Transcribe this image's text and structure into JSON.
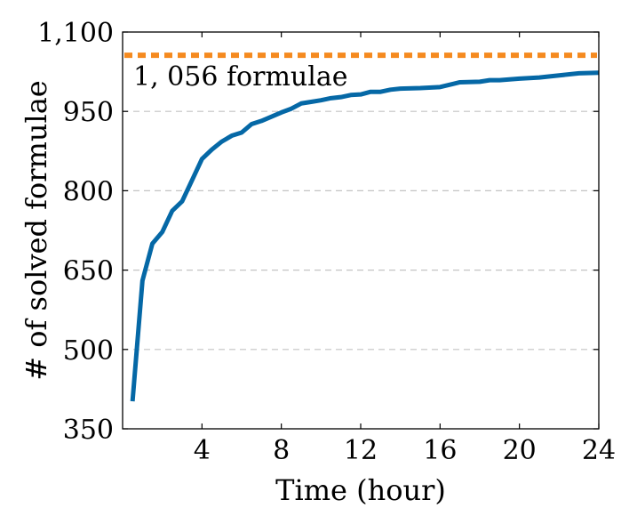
{
  "chart_data": {
    "type": "line",
    "xlabel": "Time (hour)",
    "ylabel": "# of solved formulae",
    "xlim": [
      0,
      24
    ],
    "ylim": [
      350,
      1100
    ],
    "x_ticks": [
      4,
      8,
      12,
      16,
      20,
      24
    ],
    "x_tick_labels": [
      "4",
      "8",
      "12",
      "16",
      "20",
      "24"
    ],
    "y_ticks": [
      350,
      500,
      650,
      800,
      950,
      1100
    ],
    "y_tick_labels": [
      "350",
      "500",
      "650",
      "800",
      "950",
      "1,100"
    ],
    "grid": "horizontal-dashed",
    "series": [
      {
        "color": "#0568a6",
        "x": [
          0.5,
          1,
          1.5,
          2,
          2.5,
          3,
          3.5,
          4,
          4.5,
          5,
          5.5,
          6,
          6.5,
          7,
          7.5,
          8,
          8.5,
          9,
          9.5,
          10,
          10.5,
          11,
          11.5,
          12,
          12.5,
          13,
          13.5,
          14,
          15,
          16,
          17,
          18,
          18.5,
          19,
          20,
          21,
          22,
          23,
          24
        ],
        "y": [
          402,
          630,
          700,
          722,
          762,
          780,
          820,
          860,
          878,
          893,
          904,
          910,
          926,
          932,
          940,
          948,
          955,
          965,
          968,
          971,
          975,
          977,
          981,
          982,
          987,
          987,
          991,
          993,
          994,
          996,
          1005,
          1006,
          1009,
          1009,
          1012,
          1014,
          1018,
          1022,
          1023
        ]
      }
    ],
    "reference_line": {
      "y": 1056,
      "color": "#f58a1f",
      "label": "1, 056 formulae"
    }
  }
}
